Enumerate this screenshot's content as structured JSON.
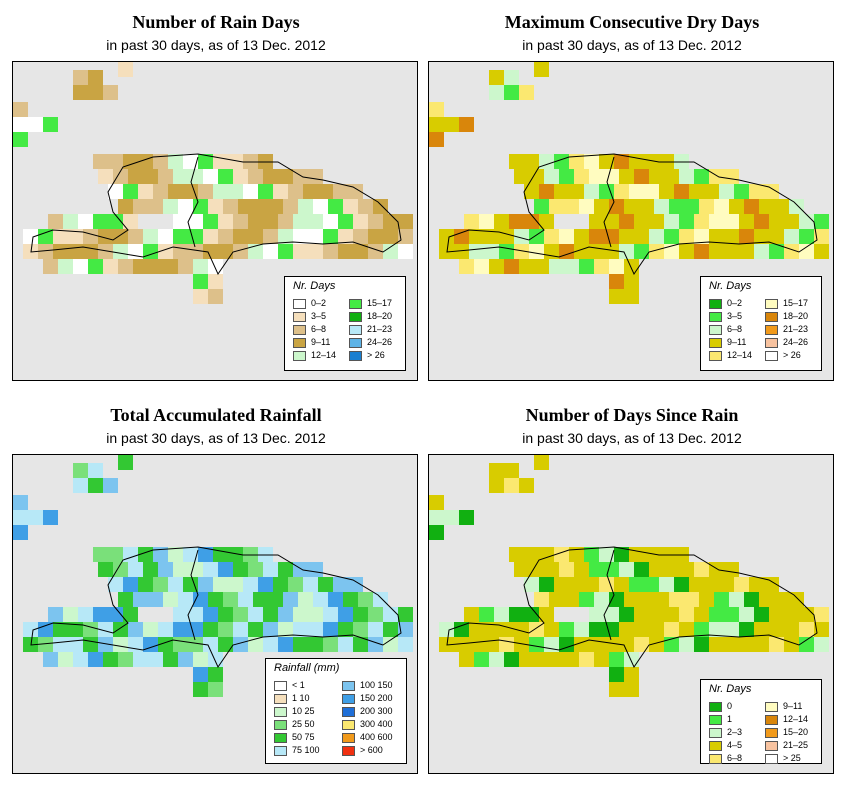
{
  "panels": [
    {
      "title": "Number of Rain Days",
      "subtitle": "in past 30 days, as of  13 Dec. 2012",
      "legend_title": "Nr. Days",
      "legend": [
        {
          "label": "0–2",
          "color": "#ffffff"
        },
        {
          "label": "3–5",
          "color": "#f5dfbc"
        },
        {
          "label": "6–8",
          "color": "#ddc08a"
        },
        {
          "label": "9–11",
          "color": "#c9a443"
        },
        {
          "label": "12–14",
          "color": "#ccf7cc"
        },
        {
          "label": "15–17",
          "color": "#44ea44"
        },
        {
          "label": "18–20",
          "color": "#11b011"
        },
        {
          "label": "21–23",
          "color": "#b7e8f7"
        },
        {
          "label": "24–26",
          "color": "#5db3e6"
        },
        {
          "label": "> 26",
          "color": "#1a7fd0"
        }
      ]
    },
    {
      "title": "Maximum Consecutive Dry Days",
      "subtitle": "in past 30 days, as of  13 Dec. 2012",
      "legend_title": "Nr. Days",
      "legend": [
        {
          "label": "0–2",
          "color": "#11b011"
        },
        {
          "label": "3–5",
          "color": "#44ea44"
        },
        {
          "label": "6–8",
          "color": "#ccf7cc"
        },
        {
          "label": "9–11",
          "color": "#d8cc00"
        },
        {
          "label": "12–14",
          "color": "#fbe870"
        },
        {
          "label": "15–17",
          "color": "#fffcc0"
        },
        {
          "label": "18–20",
          "color": "#d9860b"
        },
        {
          "label": "21–23",
          "color": "#f19a1b"
        },
        {
          "label": "24–26",
          "color": "#f8c3a0"
        },
        {
          "label": "> 26",
          "color": "#ffffff"
        }
      ]
    },
    {
      "title": "Total Accumulated Rainfall",
      "subtitle": "in past 30 days, as of  13 Dec. 2012",
      "legend_title": "Rainfall (mm)",
      "legend": [
        {
          "label": "< 1",
          "color": "#ffffff"
        },
        {
          "label": "1    10",
          "color": "#f5dfbc"
        },
        {
          "label": "10    25",
          "color": "#ccf7cc"
        },
        {
          "label": "25    50",
          "color": "#7ae07a"
        },
        {
          "label": "50    75",
          "color": "#33c833"
        },
        {
          "label": "75  100",
          "color": "#b7e8f7"
        },
        {
          "label": "100  150",
          "color": "#7cc4ef"
        },
        {
          "label": "150  200",
          "color": "#3f9fe6"
        },
        {
          "label": "200  300",
          "color": "#1f6fd8"
        },
        {
          "label": "300  400",
          "color": "#fbe870"
        },
        {
          "label": "400  600",
          "color": "#f19a1b"
        },
        {
          "label": "> 600",
          "color": "#f03010"
        }
      ]
    },
    {
      "title": "Number of Days Since Rain",
      "subtitle": "in past 30 days, as of  13 Dec. 2012",
      "legend_title": "Nr. Days",
      "legend": [
        {
          "label": "0",
          "color": "#11b011"
        },
        {
          "label": "1",
          "color": "#44ea44"
        },
        {
          "label": "2–3",
          "color": "#ccf7cc"
        },
        {
          "label": "4–5",
          "color": "#d8cc00"
        },
        {
          "label": "6–8",
          "color": "#fbe870"
        },
        {
          "label": "9–11",
          "color": "#fffcc0"
        },
        {
          "label": "12–14",
          "color": "#d9860b"
        },
        {
          "label": "15–20",
          "color": "#f19a1b"
        },
        {
          "label": "21–25",
          "color": "#f8c3a0"
        },
        {
          "label": "> 25",
          "color": "#ffffff"
        }
      ]
    }
  ]
}
